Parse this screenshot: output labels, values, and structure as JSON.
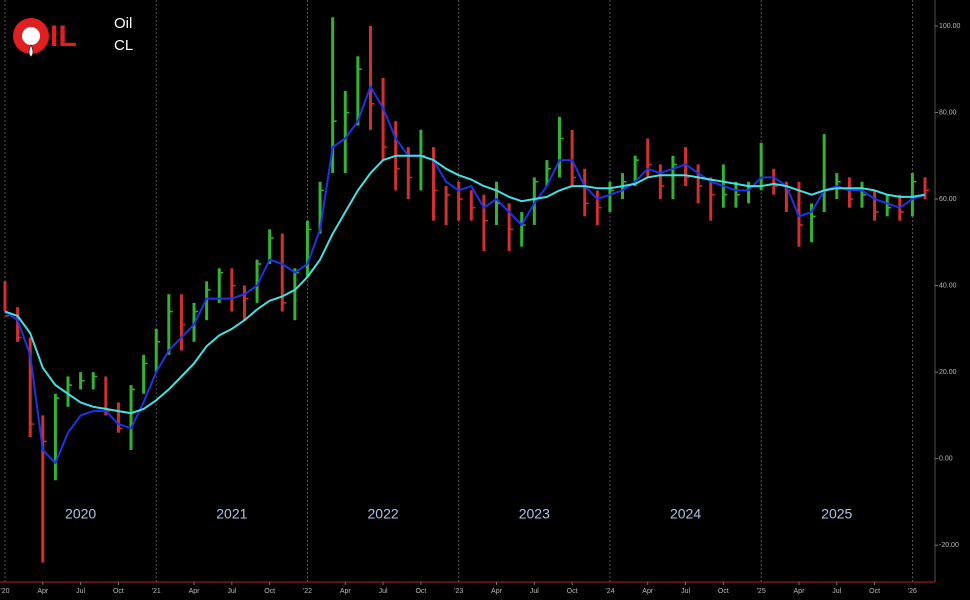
{
  "header": {
    "logo": "IL",
    "name": "Oil",
    "symbol": "CL"
  },
  "chart_data": {
    "type": "ohlc",
    "x": [
      "2020-01",
      "2020-02",
      "2020-03",
      "2020-04",
      "2020-05",
      "2020-06",
      "2020-07",
      "2020-08",
      "2020-09",
      "2020-10",
      "2020-11",
      "2020-12",
      "2021-01",
      "2021-02",
      "2021-03",
      "2021-04",
      "2021-05",
      "2021-06",
      "2021-07",
      "2021-08",
      "2021-09",
      "2021-10",
      "2021-11",
      "2021-12",
      "2022-01",
      "2022-02",
      "2022-03",
      "2022-04",
      "2022-05",
      "2022-06",
      "2022-07",
      "2022-08",
      "2022-09",
      "2022-10",
      "2022-11",
      "2022-12",
      "2023-01",
      "2023-02",
      "2023-03",
      "2023-04",
      "2023-05",
      "2023-06",
      "2023-07",
      "2023-08",
      "2023-09",
      "2023-10",
      "2023-11",
      "2023-12",
      "2024-01",
      "2024-02",
      "2024-03",
      "2024-04",
      "2024-05",
      "2024-06",
      "2024-07",
      "2024-08",
      "2024-09",
      "2024-10",
      "2024-11",
      "2024-12",
      "2025-01",
      "2025-02",
      "2025-03",
      "2025-04",
      "2025-05",
      "2025-06",
      "2025-07",
      "2025-08",
      "2025-09",
      "2025-10",
      "2025-11",
      "2025-12",
      "2026-01",
      "2026-02"
    ],
    "high": [
      41,
      35,
      28,
      10,
      15,
      19,
      20,
      20,
      19,
      13,
      17,
      24,
      30,
      38,
      38,
      36,
      41,
      44,
      44,
      40,
      46,
      53,
      52,
      44,
      55,
      64,
      102,
      85,
      93,
      100,
      88,
      78,
      72,
      76,
      72,
      63,
      64,
      62,
      61,
      64,
      59,
      57,
      65,
      69,
      79,
      76,
      67,
      62,
      64,
      66,
      70,
      74,
      68,
      70,
      72,
      68,
      65,
      68,
      64,
      64,
      73,
      67,
      64,
      64,
      59,
      75,
      66,
      65,
      64,
      62,
      61,
      61,
      66,
      65
    ],
    "low": [
      34,
      27,
      5,
      -24,
      -5,
      12,
      16,
      16,
      10,
      6,
      2,
      15,
      20,
      24,
      25,
      27,
      32,
      36,
      34,
      32,
      36,
      45,
      34,
      32,
      42,
      52,
      66,
      66,
      77,
      76,
      69,
      62,
      60,
      62,
      55,
      54,
      55,
      55,
      48,
      54,
      48,
      49,
      54,
      63,
      65,
      63,
      56,
      54,
      57,
      60,
      63,
      65,
      60,
      60,
      63,
      59,
      55,
      58,
      58,
      59,
      62,
      61,
      57,
      49,
      50,
      57,
      60,
      58,
      58,
      55,
      56,
      55,
      56,
      60
    ],
    "close": [
      33,
      28,
      8,
      4,
      14,
      17,
      18,
      19,
      11,
      7,
      16,
      22,
      27,
      34,
      31,
      34,
      39,
      43,
      40,
      37,
      45,
      51,
      36,
      43,
      53,
      62,
      78,
      80,
      90,
      82,
      72,
      67,
      65,
      70,
      62,
      61,
      60,
      58,
      55,
      59,
      53,
      54,
      64,
      67,
      74,
      65,
      59,
      58,
      62,
      64,
      69,
      68,
      63,
      68,
      65,
      63,
      61,
      61,
      61,
      63,
      65,
      63,
      62,
      54,
      56,
      62,
      64,
      60,
      61,
      57,
      58,
      57,
      64,
      62
    ],
    "up_color": "#33b233",
    "down_color": "#d23030",
    "series": [
      {
        "color": "#1f33e6",
        "values": [
          34,
          32,
          24,
          2,
          -1,
          6,
          10,
          11,
          11,
          8,
          7,
          13,
          20,
          25,
          28,
          31,
          37,
          37,
          37,
          38,
          40,
          46,
          45,
          43,
          45,
          53,
          72,
          74,
          78,
          86,
          81,
          74,
          70,
          70,
          69,
          64,
          62,
          63,
          58,
          60,
          57,
          54,
          59,
          63,
          69,
          69,
          63,
          60,
          61,
          62,
          64,
          67,
          66,
          67,
          68,
          66,
          64,
          63,
          62,
          62,
          65,
          65,
          63,
          56,
          57,
          62,
          63,
          62,
          62,
          60,
          59,
          58,
          60,
          61
        ]
      },
      {
        "color": "#45e0e0",
        "values": [
          34,
          33,
          29,
          21,
          17,
          15,
          13,
          12,
          11.5,
          11,
          10.5,
          11.5,
          13.5,
          16,
          19,
          22,
          26,
          28.5,
          30,
          32,
          34.5,
          36.5,
          37.5,
          39,
          42,
          46,
          52,
          57,
          62,
          66,
          69,
          70,
          70,
          70,
          69,
          67,
          65.5,
          64.5,
          63,
          62,
          60.5,
          59.5,
          60,
          60.5,
          62,
          63,
          63,
          62.5,
          62.5,
          63,
          63.5,
          65,
          65.5,
          65.5,
          65.5,
          65,
          64.5,
          64,
          63.5,
          63,
          63,
          63.5,
          63,
          62,
          61,
          62,
          62.5,
          62.5,
          62.5,
          62,
          61,
          60.5,
          60.5,
          61
        ]
      }
    ],
    "xlim": [
      "2020-01",
      "2026-02"
    ],
    "xticks": [
      {
        "value": "2020-01",
        "label": "'20"
      },
      {
        "value": "2020-04",
        "label": "Apr"
      },
      {
        "value": "2020-07",
        "label": "Jul"
      },
      {
        "value": "2020-10",
        "label": "Oct"
      },
      {
        "value": "2021-01",
        "label": "'21"
      },
      {
        "value": "2021-04",
        "label": "Apr"
      },
      {
        "value": "2021-07",
        "label": "Jul"
      },
      {
        "value": "2021-10",
        "label": "Oct"
      },
      {
        "value": "2022-01",
        "label": "'22"
      },
      {
        "value": "2022-04",
        "label": "Apr"
      },
      {
        "value": "2022-07",
        "label": "Jul"
      },
      {
        "value": "2022-10",
        "label": "Oct"
      },
      {
        "value": "2023-01",
        "label": "'23"
      },
      {
        "value": "2023-04",
        "label": "Apr"
      },
      {
        "value": "2023-07",
        "label": "Jul"
      },
      {
        "value": "2023-10",
        "label": "Oct"
      },
      {
        "value": "2024-01",
        "label": "'24"
      },
      {
        "value": "2024-04",
        "label": "Apr"
      },
      {
        "value": "2024-07",
        "label": "Jul"
      },
      {
        "value": "2024-10",
        "label": "Oct"
      },
      {
        "value": "2025-01",
        "label": "'25"
      },
      {
        "value": "2025-04",
        "label": "Apr"
      },
      {
        "value": "2025-07",
        "label": "Jul"
      },
      {
        "value": "2025-10",
        "label": "Oct"
      },
      {
        "value": "2026-01",
        "label": "'26"
      }
    ],
    "ylim": [
      -28.5,
      106
    ],
    "yticks": [
      {
        "value": -20,
        "label": "-20.00"
      },
      {
        "value": 0,
        "label": "0.00"
      },
      {
        "value": 20,
        "label": "20.00"
      },
      {
        "value": 40,
        "label": "40.00"
      },
      {
        "value": 60,
        "label": "60.00"
      },
      {
        "value": 80,
        "label": "80.00"
      },
      {
        "value": 100,
        "label": "100.00"
      }
    ],
    "year_labels": [
      {
        "text": "2020",
        "x": "2020-07"
      },
      {
        "text": "2021",
        "x": "2021-07"
      },
      {
        "text": "2022",
        "x": "2022-07"
      },
      {
        "text": "2023",
        "x": "2023-07"
      },
      {
        "text": "2024",
        "x": "2024-07"
      },
      {
        "text": "2025",
        "x": "2025-07"
      }
    ]
  }
}
